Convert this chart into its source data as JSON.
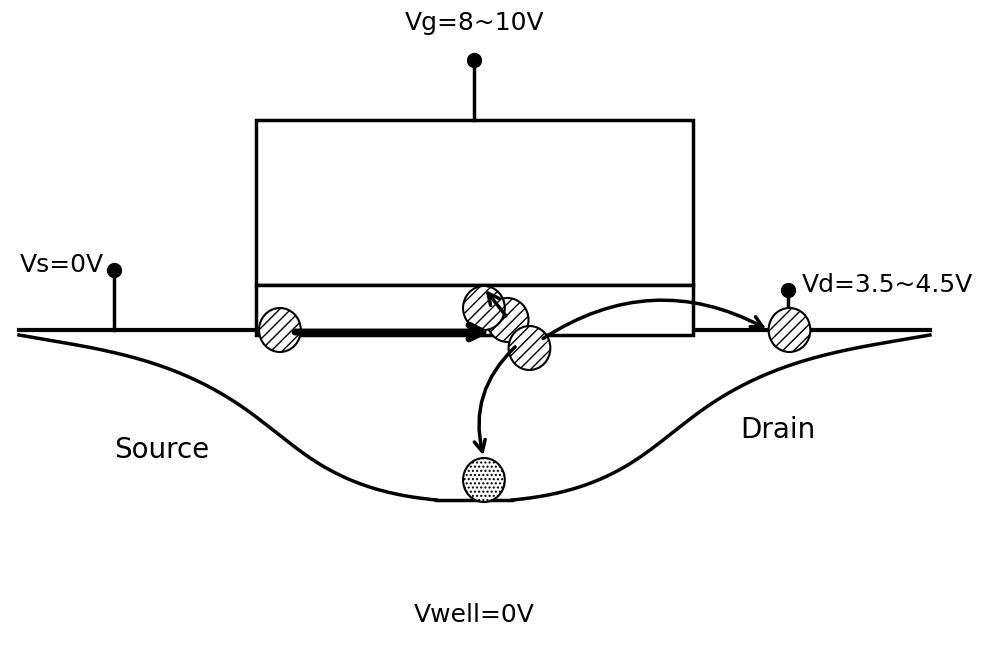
{
  "bg_color": "#ffffff",
  "vg_label": "Vg=8~10V",
  "vs_label": "Vs=0V",
  "vd_label": "Vd=3.5~4.5V",
  "vwell_label": "Vwell=0V",
  "source_label": "Source",
  "drain_label": "Drain",
  "line_color": "#000000",
  "line_width": 2.5,
  "fontsize_volt": 18,
  "fontsize_region": 20
}
